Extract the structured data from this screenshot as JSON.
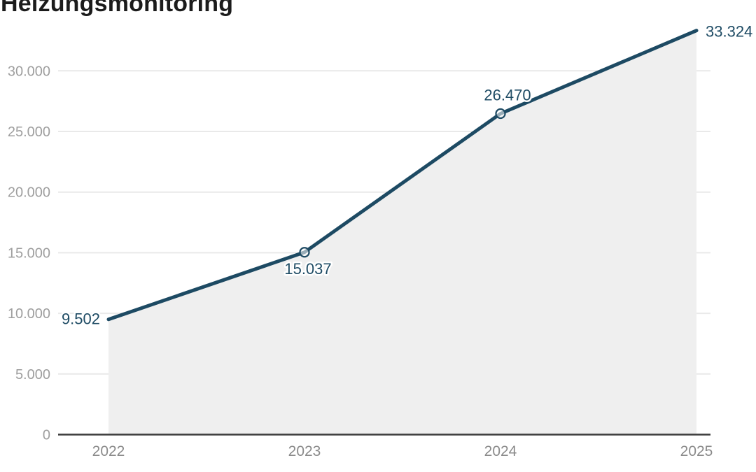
{
  "title": "Heizungsmonitoring",
  "colors": {
    "line": "#1d4a63",
    "area_fill": "#efefef",
    "grid": "#e9e9e9",
    "axis": "#3c3c3c",
    "y_tick_text": "#9e9e9e",
    "x_tick_text": "#8a8a8a",
    "data_label_text": "#1e4b64",
    "data_label_halo": "#ffffff",
    "marker_fill": "rgba(255,255,255,0.55)",
    "title_text": "#1b1b1b"
  },
  "chart_data": {
    "type": "area",
    "title": "Heizungsmonitoring",
    "categories": [
      "2022",
      "2023",
      "2024",
      "2025"
    ],
    "values": [
      9502,
      15037,
      26470,
      33324
    ],
    "series": [
      {
        "name": "Heizungsmonitoring",
        "values": [
          9502,
          15037,
          26470,
          33324
        ]
      }
    ],
    "points": [
      {
        "category": "2022",
        "value": 9502,
        "label": "9.502",
        "marker": false,
        "label_position": "left"
      },
      {
        "category": "2023",
        "value": 15037,
        "label": "15.037",
        "marker": true,
        "label_position": "below"
      },
      {
        "category": "2024",
        "value": 26470,
        "label": "26.470",
        "marker": true,
        "label_position": "above"
      },
      {
        "category": "2025",
        "value": 33324,
        "label": "33.324",
        "marker": false,
        "label_position": "right"
      }
    ],
    "y_ticks": [
      {
        "value": 0,
        "label": "0"
      },
      {
        "value": 5000,
        "label": "5.000"
      },
      {
        "value": 10000,
        "label": "10.000"
      },
      {
        "value": 15000,
        "label": "15.000"
      },
      {
        "value": 20000,
        "label": "20.000"
      },
      {
        "value": 25000,
        "label": "25.000"
      },
      {
        "value": 30000,
        "label": "30.000"
      }
    ],
    "ylim": [
      0,
      33400
    ],
    "xlabel": "",
    "ylabel": "",
    "grid": true,
    "legend": false,
    "number_format": "de-DE thousands with dot"
  }
}
